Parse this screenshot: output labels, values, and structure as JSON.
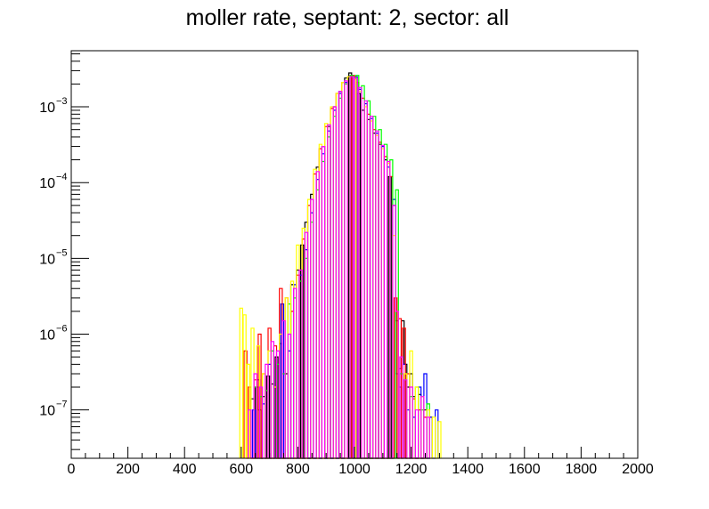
{
  "chart_data": {
    "type": "line",
    "title": "moller rate, septant: 2, sector: all",
    "xlabel": "",
    "ylabel": "",
    "xlim": [
      0,
      2000
    ],
    "ylim": [
      2.3e-08,
      0.0055
    ],
    "y_scale": "log",
    "x_ticks": [
      0,
      200,
      400,
      600,
      800,
      1000,
      1200,
      1400,
      1600,
      1800,
      2000
    ],
    "x_tick_labels": [
      "0",
      "200",
      "400",
      "600",
      "800",
      "1000",
      "1200",
      "1400",
      "1600",
      "1800",
      "2000"
    ],
    "y_tick_labels": [
      {
        "base": "10",
        "exp": "−3"
      },
      {
        "base": "10",
        "exp": "−4"
      },
      {
        "base": "10",
        "exp": "−5"
      },
      {
        "base": "10",
        "exp": "−6"
      },
      {
        "base": "10",
        "exp": "−7"
      }
    ],
    "y_ticks": [
      0.001,
      0.0001,
      1e-05,
      1e-06,
      1e-07
    ],
    "grid": false,
    "legend": "none",
    "series": [
      {
        "color": "#000000",
        "x": [
          640,
          655,
          665,
          680,
          695,
          710,
          725,
          740,
          760,
          780,
          800,
          815,
          830,
          850,
          870,
          890,
          910,
          930,
          950,
          970,
          985,
          1000,
          1015,
          1030,
          1050,
          1070,
          1090,
          1110,
          1125,
          1140,
          1150,
          1160,
          1170,
          1180,
          1190,
          1200,
          1210,
          1230,
          1250,
          1270
        ],
        "y": [
          1.4e-07,
          2e-07,
          1e-07,
          1.5e-07,
          2.8e-07,
          2.2e-07,
          5e-07,
          7.5e-07,
          3e-07,
          4.5e-06,
          7e-06,
          1.5e-05,
          3e-05,
          7e-05,
          0.00016,
          0.0003,
          0.00055,
          0.001,
          0.0016,
          0.0024,
          0.0028,
          0.0023,
          0.0015,
          0.0009,
          0.00068,
          0.00045,
          0.00032,
          0.0002,
          0.00012,
          5e-05,
          1.5e-06,
          3.5e-07,
          1.5e-06,
          4e-07,
          2e-07,
          3e-07,
          1.5e-07,
          1.6e-07,
          1e-07,
          8e-08
        ]
      },
      {
        "color": "#0000ff",
        "x": [
          645,
          660,
          680,
          700,
          720,
          745,
          770,
          790,
          810,
          830,
          850,
          870,
          890,
          910,
          930,
          950,
          970,
          990,
          1005,
          1020,
          1040,
          1060,
          1080,
          1100,
          1120,
          1140,
          1150,
          1160,
          1175,
          1190,
          1210,
          1230,
          1250,
          1270,
          1290
        ],
        "y": [
          1e-07,
          2.5e-07,
          1.2e-07,
          4e-07,
          2e-07,
          2.5e-06,
          6e-07,
          4.5e-06,
          6e-06,
          1.3e-05,
          4e-05,
          0.00011,
          0.00024,
          0.00048,
          0.0009,
          0.0015,
          0.0021,
          0.0026,
          0.0025,
          0.0017,
          0.0011,
          0.0007,
          0.00045,
          0.0003,
          0.00016,
          6e-05,
          3e-07,
          2e-07,
          4e-07,
          1e-07,
          8e-08,
          2e-07,
          3e-07,
          8e-08,
          1e-07
        ]
      },
      {
        "color": "#ff0000",
        "x": [
          615,
          630,
          650,
          665,
          680,
          700,
          720,
          740,
          760,
          780,
          800,
          820,
          840,
          860,
          880,
          900,
          920,
          940,
          960,
          980,
          995,
          1010,
          1030,
          1050,
          1070,
          1090,
          1110,
          1130,
          1145,
          1160,
          1175,
          1190,
          1210,
          1230,
          1250
        ],
        "y": [
          6e-07,
          2e-07,
          2.5e-07,
          1e-06,
          3e-07,
          1.2e-06,
          7e-07,
          4e-06,
          3e-06,
          2e-06,
          6e-06,
          1.8e-05,
          5e-05,
          0.00013,
          0.00028,
          0.00055,
          0.00095,
          0.0015,
          0.0021,
          0.0025,
          0.0026,
          0.0021,
          0.0013,
          0.0008,
          0.0005,
          0.00034,
          0.00022,
          0.00012,
          3e-06,
          1.6e-06,
          1.2e-06,
          3e-07,
          1.4e-07,
          1e-07,
          8e-08
        ]
      },
      {
        "color": "#00ff00",
        "x": [
          650,
          670,
          690,
          710,
          730,
          750,
          770,
          790,
          810,
          830,
          850,
          870,
          890,
          910,
          930,
          950,
          970,
          990,
          1010,
          1030,
          1050,
          1070,
          1090,
          1110,
          1130,
          1150,
          1165,
          1180,
          1200,
          1220,
          1240,
          1260
        ],
        "y": [
          2e-07,
          1.5e-07,
          1.8e-07,
          6e-07,
          4e-07,
          3e-07,
          2.5e-06,
          3e-06,
          5e-06,
          1e-05,
          3e-05,
          8e-05,
          0.00019,
          0.0004,
          0.00075,
          0.0013,
          0.002,
          0.0026,
          0.0026,
          0.0019,
          0.0012,
          0.00075,
          0.0005,
          0.00032,
          0.0002,
          8e-05,
          3e-07,
          2.5e-07,
          1.5e-07,
          2e-07,
          1e-07,
          1.2e-07
        ]
      },
      {
        "color": "#ffff00",
        "x": [
          600,
          612,
          625,
          640,
          660,
          680,
          700,
          720,
          740,
          760,
          780,
          800,
          820,
          840,
          860,
          880,
          900,
          920,
          940,
          960,
          980,
          1000,
          1020,
          1040,
          1060,
          1080,
          1100,
          1120,
          1140,
          1150,
          1165,
          1180,
          1200,
          1220,
          1240,
          1260,
          1280,
          1300
        ],
        "y": [
          2.2e-06,
          1.8e-06,
          4e-07,
          1.2e-06,
          7e-07,
          3e-07,
          6e-07,
          2e-07,
          1e-06,
          3e-06,
          5e-06,
          1.5e-05,
          2.5e-05,
          6e-05,
          0.00015,
          0.00032,
          0.0006,
          0.001,
          0.0015,
          0.0021,
          0.0025,
          0.0023,
          0.0016,
          0.001,
          0.00065,
          0.00042,
          0.00028,
          0.00018,
          2e-05,
          2e-06,
          5e-07,
          3e-07,
          6e-07,
          2e-07,
          1.5e-07,
          1e-07,
          8e-08,
          7e-08
        ]
      },
      {
        "color": "#ff00ff",
        "x": [
          630,
          650,
          670,
          690,
          710,
          730,
          750,
          770,
          790,
          810,
          830,
          850,
          870,
          890,
          910,
          930,
          950,
          970,
          990,
          1005,
          1020,
          1040,
          1060,
          1080,
          1100,
          1120,
          1140,
          1150,
          1165,
          1180,
          1200,
          1220,
          1240,
          1260
        ],
        "y": [
          1e-07,
          3e-07,
          2e-07,
          4e-07,
          8e-07,
          6e-07,
          1.5e-06,
          1e-06,
          4e-06,
          7e-06,
          2.2e-05,
          6e-05,
          0.00014,
          0.0003,
          0.00058,
          0.001,
          0.0016,
          0.0022,
          0.0025,
          0.0024,
          0.0018,
          0.0012,
          0.00075,
          0.00048,
          0.00031,
          0.00019,
          5e-05,
          2e-06,
          5e-07,
          2.5e-07,
          2e-07,
          1e-07,
          1.5e-07,
          8e-08
        ]
      }
    ]
  }
}
